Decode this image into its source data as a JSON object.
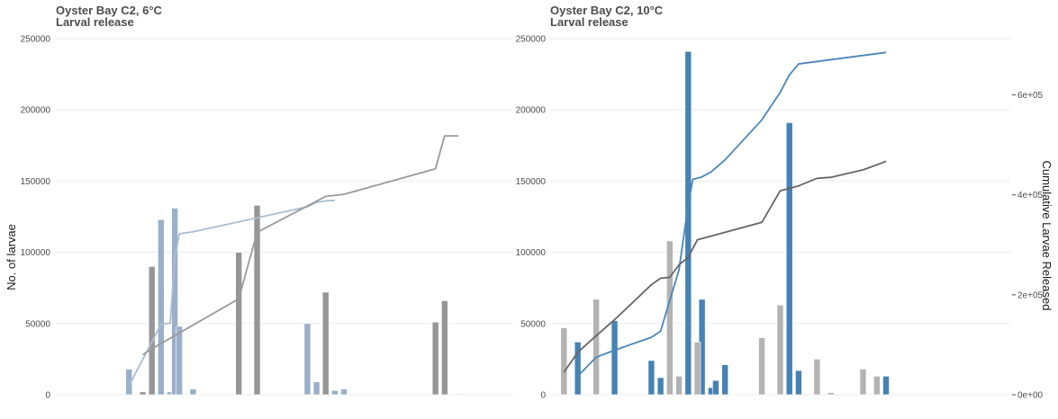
{
  "chart_data": [
    {
      "type": "bar",
      "title": "Oyster Bay C2, 6°C",
      "subtitle": "Larval release",
      "ylabel": "No. of larvae",
      "ylim": [
        0,
        250000
      ],
      "yticks": [
        "0",
        "50000",
        "100000",
        "150000",
        "200000",
        "250000"
      ],
      "grid": true,
      "colors": {
        "blue": "#9aafc9",
        "grey": "#969696",
        "blue_line": "#a9bdd3",
        "grey_line": "#9a9a9a"
      },
      "xlim": [
        0,
        100
      ],
      "series": [
        {
          "color": "blue",
          "points": [
            [
              16,
              18000
            ],
            [
              23,
              123000
            ],
            [
              25,
              2000
            ],
            [
              26,
              131000
            ],
            [
              27,
              48000
            ],
            [
              30,
              4000
            ],
            [
              55,
              50000
            ],
            [
              57,
              9000
            ],
            [
              61,
              3000
            ],
            [
              63,
              4000
            ]
          ]
        },
        {
          "color": "grey",
          "points": [
            [
              19,
              2000
            ],
            [
              21,
              90000
            ],
            [
              40,
              100000
            ],
            [
              44,
              133000
            ],
            [
              59,
              72000
            ],
            [
              83,
              51000
            ],
            [
              85,
              66000
            ],
            [
              88,
              500
            ]
          ]
        }
      ],
      "cumulative": {
        "ylim": [
          0,
          712500
        ],
        "lines": [
          {
            "color": "blue_line",
            "points": [
              [
                16,
                18000
              ],
              [
                23,
                141000
              ],
              [
                25,
                143000
              ],
              [
                26,
                274000
              ],
              [
                27,
                322000
              ],
              [
                30,
                326000
              ],
              [
                55,
                376000
              ],
              [
                57,
                385000
              ],
              [
                59,
                388000
              ],
              [
                61,
                389000
              ]
            ]
          },
          {
            "color": "grey_line",
            "points": [
              [
                19,
                80000
              ],
              [
                21,
                92000
              ],
              [
                40,
                192000
              ],
              [
                44,
                325000
              ],
              [
                59,
                397000
              ],
              [
                63,
                401000
              ],
              [
                83,
                452000
              ],
              [
                85,
                518000
              ],
              [
                88,
                518000
              ]
            ]
          }
        ]
      }
    },
    {
      "type": "bar",
      "title": "Oyster Bay C2, 10°C",
      "subtitle": "Larval release",
      "ylabel": "",
      "y2label": "Cumulative Larvae Released",
      "ylim": [
        0,
        250000
      ],
      "yticks": [
        "0",
        "50000",
        "100000",
        "150000",
        "200000",
        "250000"
      ],
      "y2lim": [
        0,
        712500
      ],
      "y2ticks": [
        {
          "value": 0,
          "label": "0e+00"
        },
        {
          "value": 200000,
          "label": "2e+05"
        },
        {
          "value": 400000,
          "label": "4e+05"
        },
        {
          "value": 600000,
          "label": "6e+05"
        }
      ],
      "grid": true,
      "colors": {
        "blue": "#4682b4",
        "grey": "#b3b3b3",
        "blue_line": "#4a86bb",
        "grey_line": "#666666"
      },
      "xlim": [
        0,
        100
      ],
      "series": [
        {
          "color": "blue",
          "points": [
            [
              6,
              37000
            ],
            [
              14,
              52000
            ],
            [
              22,
              24000
            ],
            [
              24,
              12000
            ],
            [
              30,
              241000
            ],
            [
              33,
              67000
            ],
            [
              35,
              5000
            ],
            [
              36,
              10000
            ],
            [
              38,
              21000
            ],
            [
              52,
              191000
            ],
            [
              54,
              17000
            ],
            [
              73,
              13000
            ]
          ]
        },
        {
          "color": "grey",
          "points": [
            [
              3,
              47000
            ],
            [
              10,
              67000
            ],
            [
              26,
              108000
            ],
            [
              28,
              13000
            ],
            [
              32,
              37000
            ],
            [
              46,
              40000
            ],
            [
              50,
              63000
            ],
            [
              58,
              25000
            ],
            [
              61,
              1500
            ],
            [
              68,
              18000
            ],
            [
              71,
              13000
            ]
          ]
        }
      ],
      "cumulative": {
        "lines": [
          {
            "color": "blue_line",
            "points": [
              [
                6,
                37000
              ],
              [
                10,
                75000
              ],
              [
                14,
                89000
              ],
              [
                22,
                115000
              ],
              [
                24,
                127000
              ],
              [
                28,
                250000
              ],
              [
                30,
                380000
              ],
              [
                31,
                431000
              ],
              [
                33,
                436000
              ],
              [
                35,
                446000
              ],
              [
                38,
                470000
              ],
              [
                46,
                550000
              ],
              [
                50,
                605000
              ],
              [
                52,
                640000
              ],
              [
                54,
                662000
              ],
              [
                73,
                685000
              ]
            ]
          },
          {
            "color": "grey_line",
            "points": [
              [
                3,
                45000
              ],
              [
                6,
                85000
              ],
              [
                10,
                118000
              ],
              [
                14,
                150000
              ],
              [
                22,
                220000
              ],
              [
                24,
                233000
              ],
              [
                26,
                235000
              ],
              [
                28,
                260000
              ],
              [
                30,
                275000
              ],
              [
                32,
                310000
              ],
              [
                36,
                320000
              ],
              [
                46,
                345000
              ],
              [
                50,
                408000
              ],
              [
                54,
                418000
              ],
              [
                58,
                433000
              ],
              [
                61,
                435000
              ],
              [
                68,
                450000
              ],
              [
                71,
                460000
              ],
              [
                73,
                467000
              ]
            ]
          }
        ]
      }
    }
  ]
}
